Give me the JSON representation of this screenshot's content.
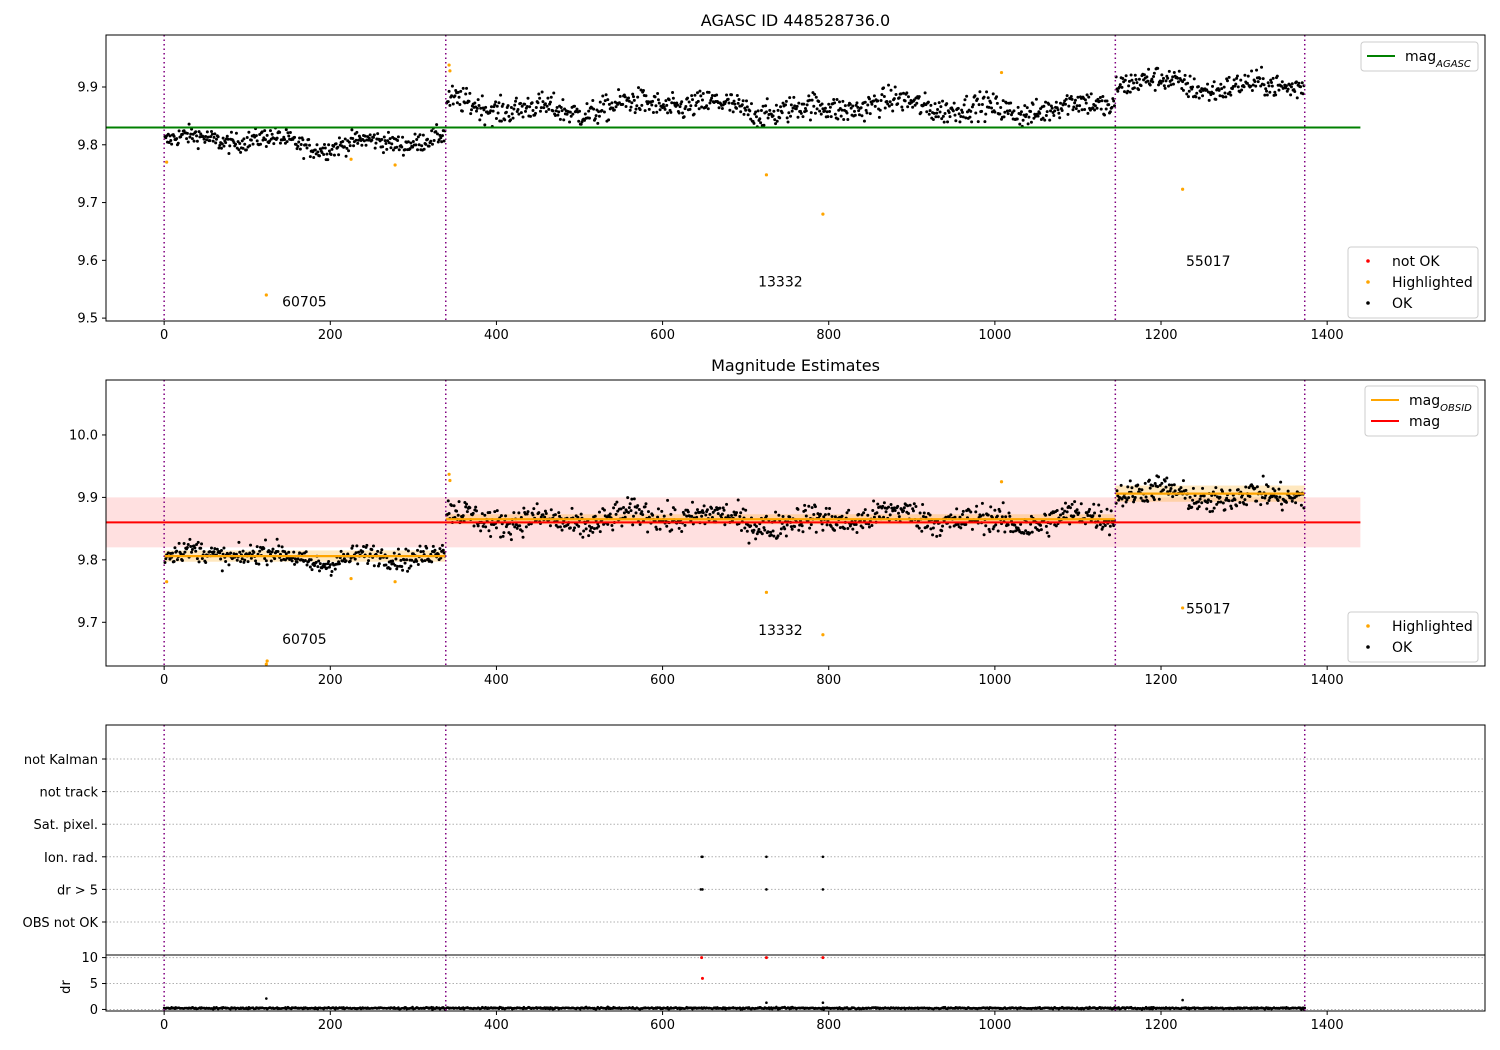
{
  "chart_data": [
    {
      "type": "scatter",
      "title": "AGASC ID 448528736.0",
      "xlim": [
        -70,
        1590
      ],
      "ylim": [
        9.495,
        9.99
      ],
      "xticks": [
        0,
        200,
        400,
        600,
        800,
        1000,
        1200,
        1400
      ],
      "yticks": [
        9.5,
        9.6,
        9.7,
        9.8,
        9.9
      ],
      "ytick_labels": [
        "9.5",
        "9.6",
        "9.7",
        "9.8",
        "9.9"
      ],
      "obs_boundaries": [
        0,
        339,
        1145,
        1373
      ],
      "obs_labels": [
        {
          "text": "60705",
          "x": 142,
          "y": 9.52
        },
        {
          "text": "13332",
          "x": 715,
          "y": 9.555
        },
        {
          "text": "55017",
          "x": 1230,
          "y": 9.59
        }
      ],
      "reference_lines": [
        {
          "name": "mag_AGASC",
          "y": 9.83,
          "x": [
            -70,
            1440
          ],
          "color": "#008000"
        }
      ],
      "segments": [
        {
          "x": [
            0,
            339
          ],
          "mean": 9.805,
          "noise": 0.012
        },
        {
          "x": [
            339,
            1145
          ],
          "mean": 9.865,
          "noise": 0.016
        },
        {
          "x": [
            1145,
            1373
          ],
          "mean": 9.905,
          "noise": 0.015
        }
      ],
      "highlighted": [
        [
          3,
          9.77
        ],
        [
          123,
          9.54
        ],
        [
          225,
          9.775
        ],
        [
          278,
          9.765
        ],
        [
          343,
          9.938
        ],
        [
          344,
          9.928
        ],
        [
          725,
          9.748
        ],
        [
          793,
          9.68
        ],
        [
          1008,
          9.925
        ],
        [
          1226,
          9.723
        ]
      ],
      "legend": [
        {
          "name": "mag",
          "sub": "AGASC",
          "kind": "line",
          "color": "#008000"
        },
        {
          "name": "not OK",
          "kind": "dot",
          "color": "#ff0000"
        },
        {
          "name": "Highlighted",
          "kind": "dot",
          "color": "#ffa500"
        },
        {
          "name": "OK",
          "kind": "dot",
          "color": "#000000"
        }
      ]
    },
    {
      "type": "scatter",
      "title": "Magnitude Estimates",
      "xlim": [
        -70,
        1590
      ],
      "ylim": [
        9.63,
        10.088
      ],
      "xticks": [
        0,
        200,
        400,
        600,
        800,
        1000,
        1200,
        1400
      ],
      "yticks": [
        9.7,
        9.8,
        9.9,
        10.0
      ],
      "ytick_labels": [
        "9.7",
        "9.8",
        "9.9",
        "10.0"
      ],
      "obs_boundaries": [
        0,
        339,
        1145,
        1373
      ],
      "obs_labels": [
        {
          "text": "60705",
          "x": 142,
          "y": 9.665
        },
        {
          "text": "13332",
          "x": 715,
          "y": 9.68
        },
        {
          "text": "55017",
          "x": 1230,
          "y": 9.714
        }
      ],
      "mag": {
        "name": "mag",
        "y": 9.86,
        "band": [
          9.82,
          9.9
        ],
        "x": [
          -70,
          1440
        ],
        "color": "#ff0000"
      },
      "obsid_means": [
        {
          "x": [
            0,
            339
          ],
          "y": 9.806,
          "band": [
            9.797,
            9.815
          ]
        },
        {
          "x": [
            339,
            1145
          ],
          "y": 9.865,
          "band": [
            9.857,
            9.873
          ]
        },
        {
          "x": [
            1145,
            1373
          ],
          "y": 9.906,
          "band": [
            9.893,
            9.919
          ]
        }
      ],
      "segments": [
        {
          "x": [
            0,
            339
          ],
          "mean": 9.805,
          "noise": 0.012
        },
        {
          "x": [
            339,
            1145
          ],
          "mean": 9.865,
          "noise": 0.016
        },
        {
          "x": [
            1145,
            1373
          ],
          "mean": 9.905,
          "noise": 0.015
        }
      ],
      "highlighted": [
        [
          3,
          9.765
        ],
        [
          123,
          9.633
        ],
        [
          124,
          9.638
        ],
        [
          225,
          9.77
        ],
        [
          278,
          9.765
        ],
        [
          343,
          9.937
        ],
        [
          344,
          9.927
        ],
        [
          725,
          9.748
        ],
        [
          793,
          9.68
        ],
        [
          1008,
          9.925
        ],
        [
          1226,
          9.723
        ]
      ],
      "legend": [
        {
          "name": "mag",
          "sub": "OBSID",
          "kind": "line",
          "color": "#ffa500"
        },
        {
          "name": "mag",
          "kind": "line",
          "color": "#ff0000"
        },
        {
          "name": "Highlighted",
          "kind": "dot",
          "color": "#ffa500"
        },
        {
          "name": "OK",
          "kind": "dot",
          "color": "#000000"
        }
      ]
    },
    {
      "type": "scatter",
      "xlim": [
        -70,
        1590
      ],
      "flags_rows": [
        "not Kalman",
        "not track",
        "Sat. pixel.",
        "Ion. rad.",
        "dr > 5",
        "OBS not OK"
      ],
      "flag_points": [
        {
          "flag": "Ion. rad.",
          "x": [
            647,
            648,
            725,
            793
          ]
        },
        {
          "flag": "dr > 5",
          "x": [
            646,
            648,
            725,
            793
          ]
        }
      ],
      "obs_boundaries": [
        0,
        339,
        1145,
        1373
      ]
    },
    {
      "type": "scatter",
      "ylabel": "dr",
      "xlim": [
        -70,
        1590
      ],
      "ylim": [
        -0.3,
        10.5
      ],
      "xticks": [
        0,
        200,
        400,
        600,
        800,
        1000,
        1200,
        1400
      ],
      "yticks": [
        0,
        5,
        10
      ],
      "ytick_labels": [
        "0",
        "5",
        "10"
      ],
      "obs_boundaries": [
        0,
        339,
        1145,
        1373
      ],
      "baseline": {
        "x": [
          0,
          1373
        ],
        "mean": 0.25
      },
      "outliers": [
        [
          123,
          2.1
        ],
        [
          725,
          1.3
        ],
        [
          793,
          1.3
        ],
        [
          1226,
          1.8
        ]
      ],
      "not_ok": [
        [
          647,
          10
        ],
        [
          648,
          6
        ],
        [
          725,
          10
        ],
        [
          793,
          10
        ]
      ]
    }
  ]
}
